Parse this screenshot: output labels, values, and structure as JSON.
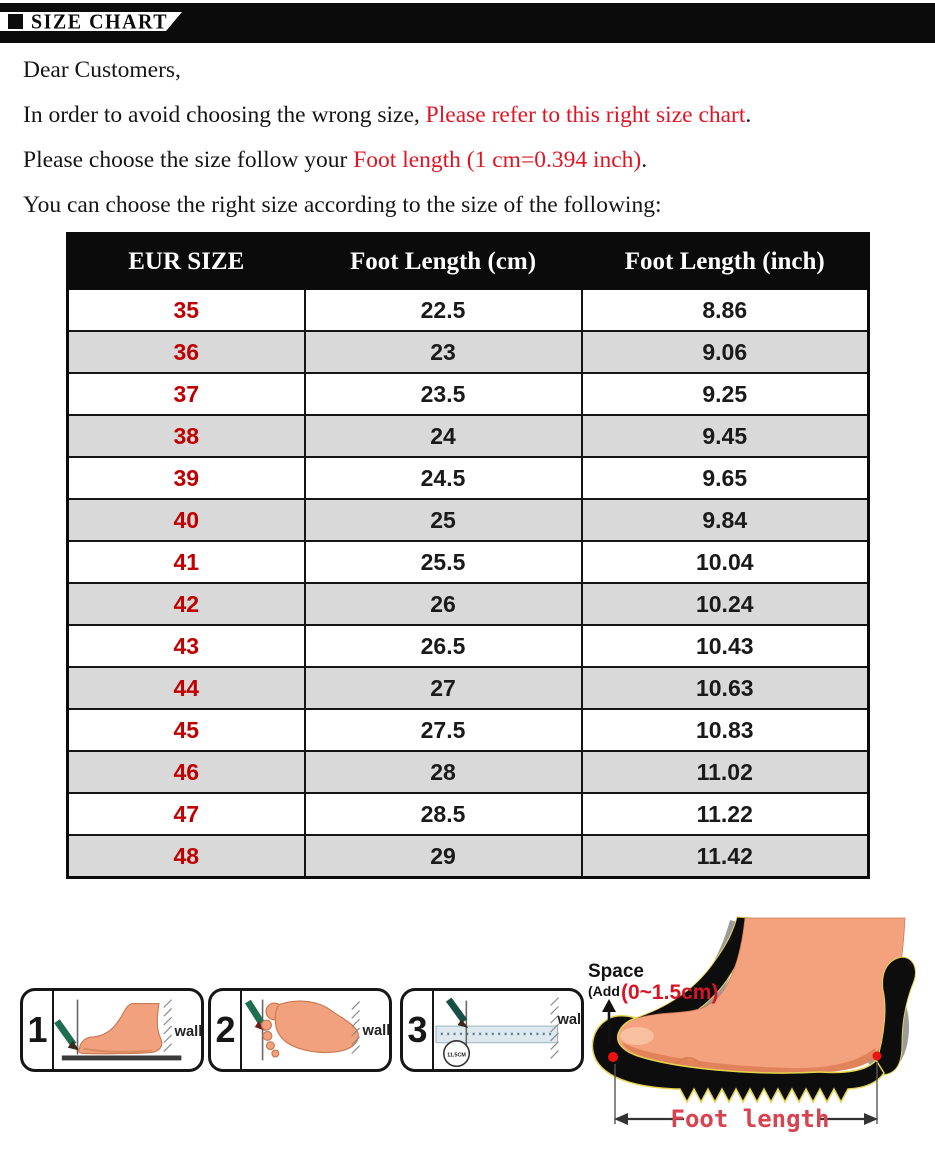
{
  "banner": {
    "title": "SIZE CHART"
  },
  "intro": {
    "line1": "Dear Customers,",
    "line2_black": "In order to avoid choosing the wrong size, ",
    "line2_red": "Please refer to this right size chart",
    "line2_end": ".",
    "line3_black": "Please choose the size follow your ",
    "line3_red": "Foot length (1 cm=0.394 inch)",
    "line3_end": ".",
    "line4": "You can choose the right size according to the size of the following:"
  },
  "size_table": {
    "headers": [
      "EUR SIZE",
      "Foot Length (cm)",
      "Foot Length (inch)"
    ],
    "rows": [
      [
        "35",
        "22.5",
        "8.86"
      ],
      [
        "36",
        "23",
        "9.06"
      ],
      [
        "37",
        "23.5",
        "9.25"
      ],
      [
        "38",
        "24",
        "9.45"
      ],
      [
        "39",
        "24.5",
        "9.65"
      ],
      [
        "40",
        "25",
        "9.84"
      ],
      [
        "41",
        "25.5",
        "10.04"
      ],
      [
        "42",
        "26",
        "10.24"
      ],
      [
        "43",
        "26.5",
        "10.43"
      ],
      [
        "44",
        "27",
        "10.63"
      ],
      [
        "45",
        "27.5",
        "10.83"
      ],
      [
        "46",
        "28",
        "11.02"
      ],
      [
        "47",
        "28.5",
        "11.22"
      ],
      [
        "48",
        "29",
        "11.42"
      ]
    ]
  },
  "chart_data": {
    "type": "table",
    "title": "SIZE CHART",
    "columns": [
      "EUR SIZE",
      "Foot Length (cm)",
      "Foot Length (inch)"
    ],
    "eur_sizes": [
      35,
      36,
      37,
      38,
      39,
      40,
      41,
      42,
      43,
      44,
      45,
      46,
      47,
      48
    ],
    "foot_length_cm": [
      22.5,
      23,
      23.5,
      24,
      24.5,
      25,
      25.5,
      26,
      26.5,
      27,
      27.5,
      28,
      28.5,
      29
    ],
    "foot_length_inch": [
      8.86,
      9.06,
      9.25,
      9.45,
      9.65,
      9.84,
      10.04,
      10.24,
      10.43,
      10.63,
      10.83,
      11.02,
      11.22,
      11.42
    ]
  },
  "measure_steps": {
    "step1": {
      "number": "1",
      "wall_label": "wall"
    },
    "step2": {
      "number": "2",
      "wall_label": "wall"
    },
    "step3": {
      "number": "3",
      "wall_label": "wall",
      "ruler_label": "11.5CM"
    }
  },
  "foot_diagram": {
    "space_label": "Space",
    "add_label": "(Add",
    "add_value": "(0~1.5cm)",
    "foot_length_label": "Foot length"
  },
  "colors": {
    "accent_red": "#e11423",
    "table_red": "#c00000",
    "row_gray": "#d9d9d9",
    "skin": "#f4a17d",
    "pencil_green": "#1f6e50"
  }
}
